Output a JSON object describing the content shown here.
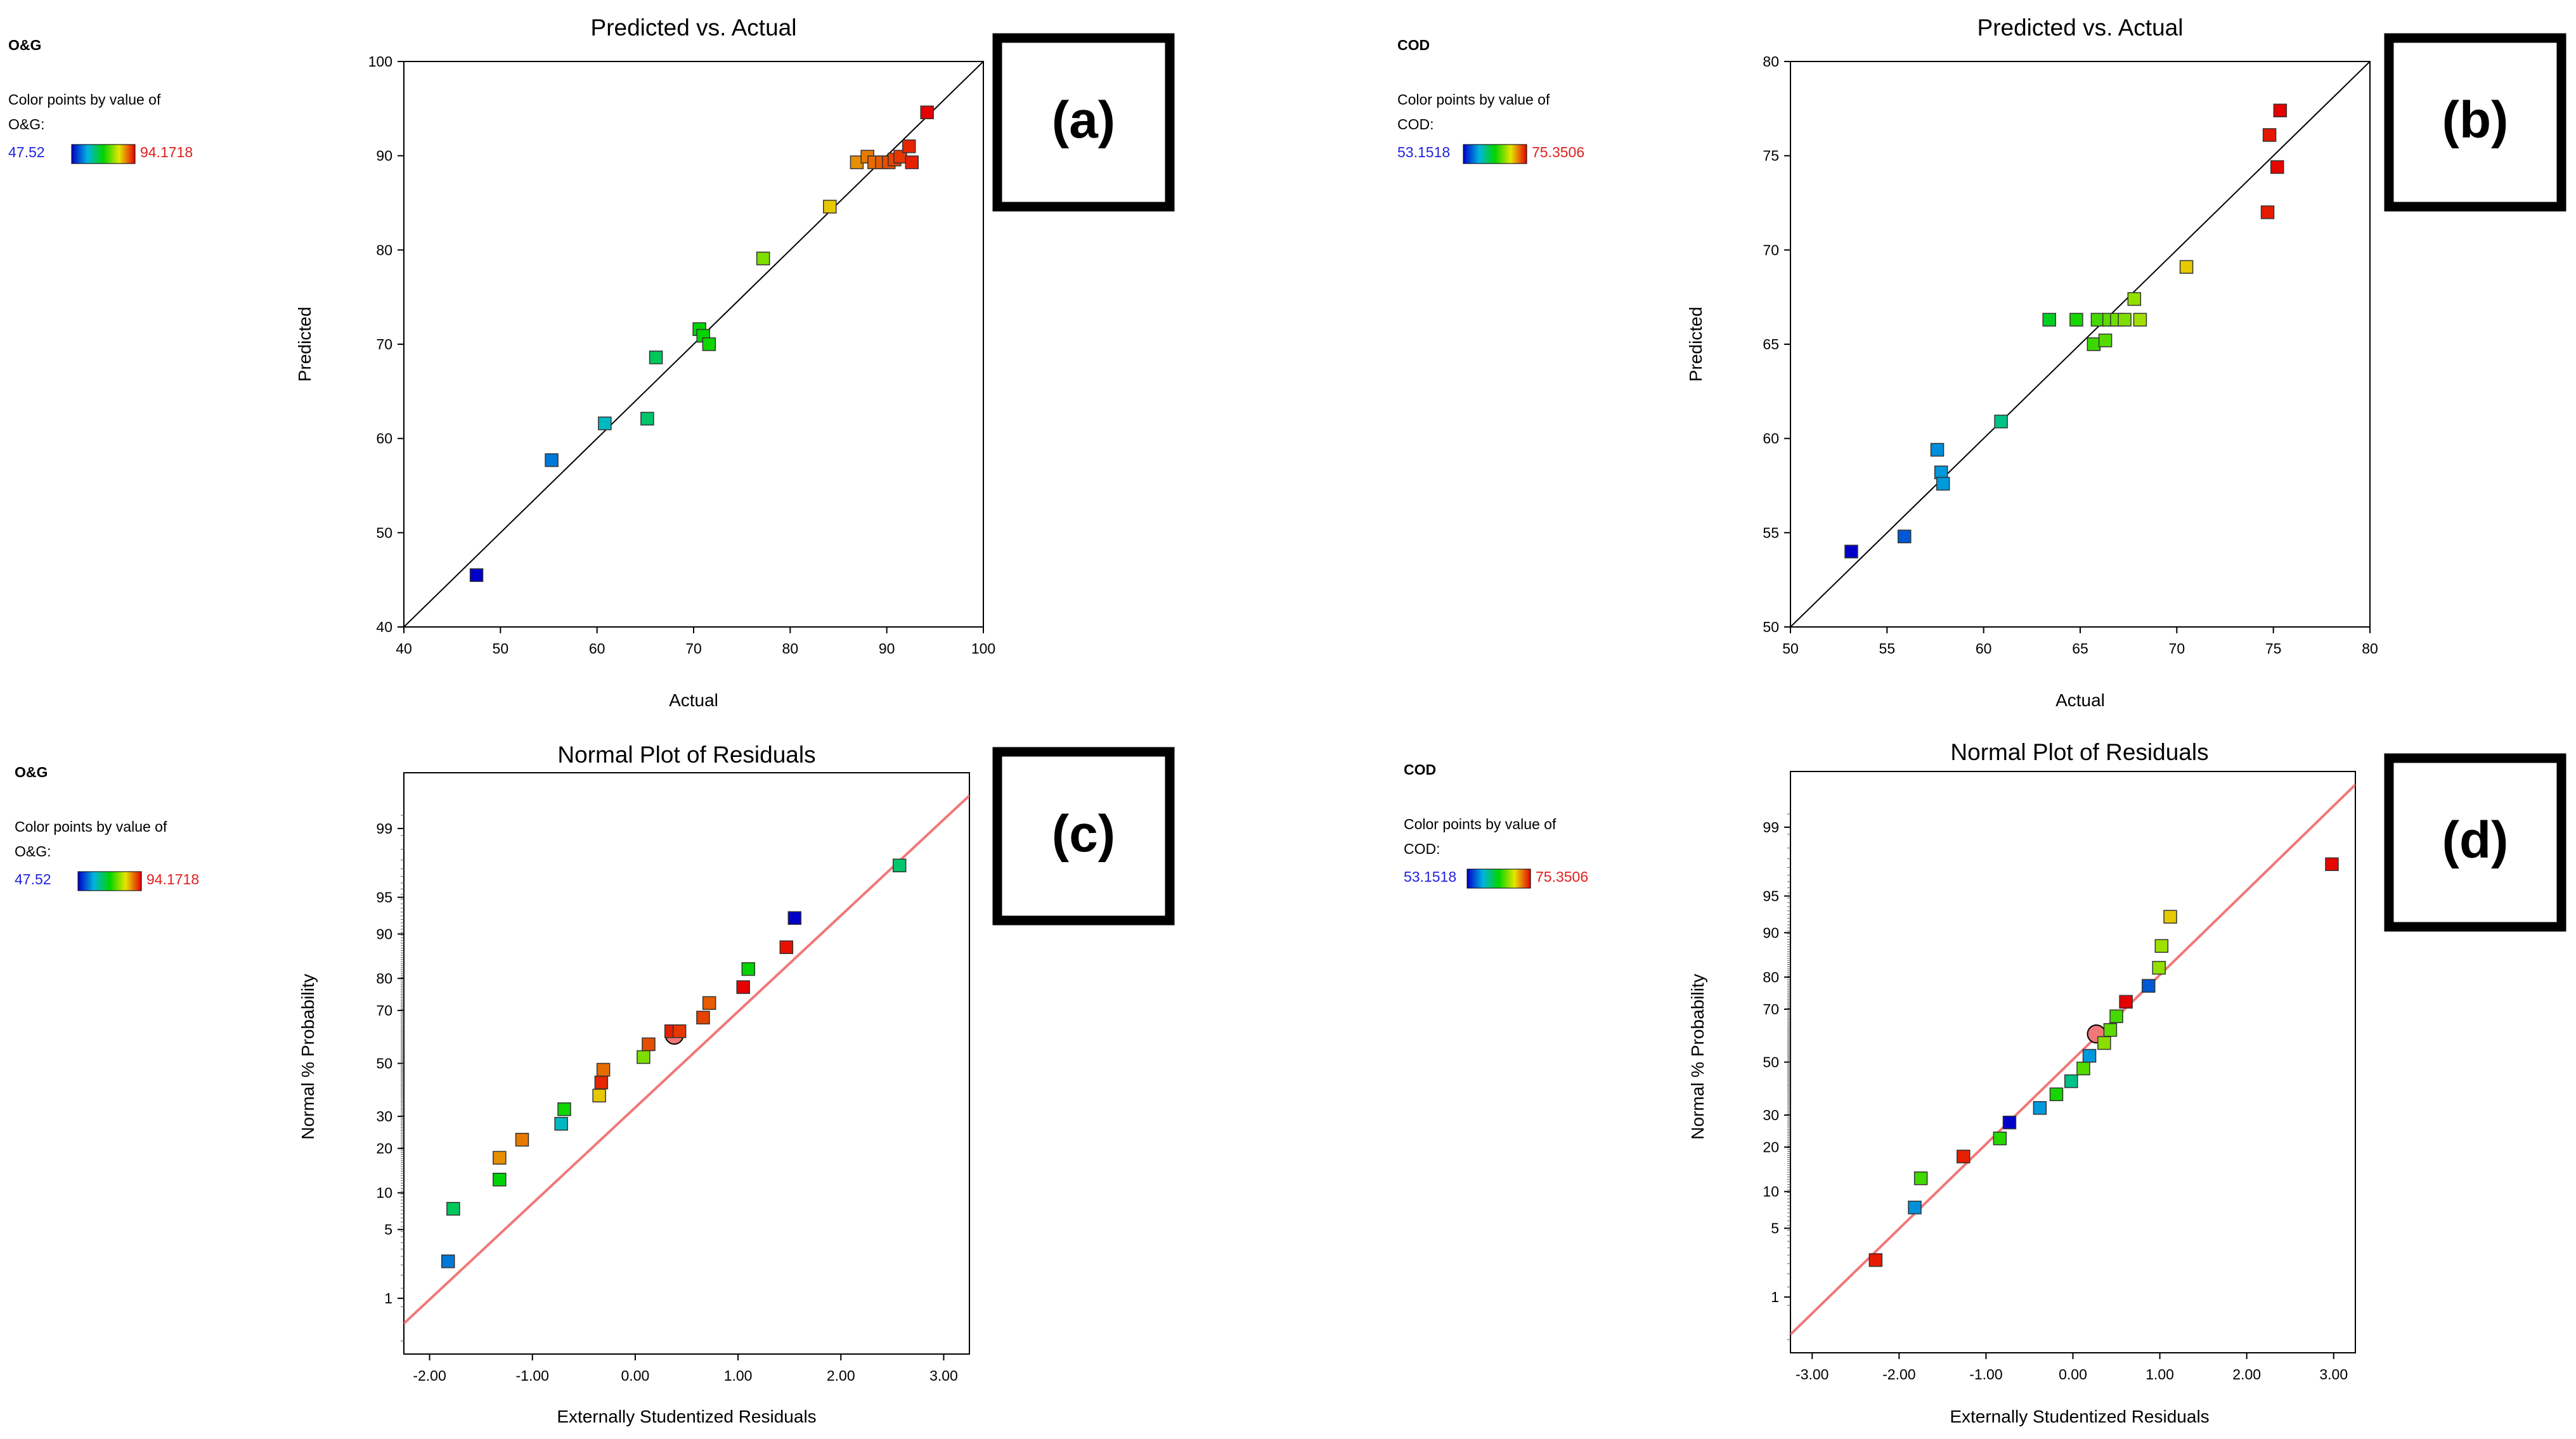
{
  "chart_data": [
    {
      "id": "a",
      "type": "scatter",
      "title": "Predicted vs. Actual",
      "xlabel": "Actual",
      "ylabel": "Predicted",
      "xlim": [
        40,
        100
      ],
      "ylim": [
        40,
        100
      ],
      "xticks": [
        40,
        50,
        60,
        70,
        80,
        90,
        100
      ],
      "yticks": [
        40,
        50,
        60,
        70,
        80,
        90,
        100
      ],
      "fit_line": {
        "from": [
          40,
          40
        ],
        "to": [
          100,
          100
        ],
        "color": "#000000"
      },
      "legend": {
        "response": "O&G",
        "caption": "Color points by value of",
        "label": "O&G:",
        "min": "47.52",
        "max": "94.1718"
      },
      "panel_label": "(a)",
      "color_range": [
        47.52,
        94.1718
      ],
      "points": [
        {
          "x": 47.52,
          "y": 45.5,
          "v": 47.52
        },
        {
          "x": 55.3,
          "y": 57.7,
          "v": 55.3
        },
        {
          "x": 60.8,
          "y": 61.6,
          "v": 60.8
        },
        {
          "x": 65.2,
          "y": 62.1,
          "v": 65.2
        },
        {
          "x": 66.1,
          "y": 68.6,
          "v": 66.1
        },
        {
          "x": 70.6,
          "y": 71.6,
          "v": 70.6
        },
        {
          "x": 71.0,
          "y": 70.9,
          "v": 71.0
        },
        {
          "x": 71.6,
          "y": 70.0,
          "v": 71.6
        },
        {
          "x": 77.2,
          "y": 79.1,
          "v": 77.2
        },
        {
          "x": 84.1,
          "y": 84.6,
          "v": 84.1
        },
        {
          "x": 86.9,
          "y": 89.3,
          "v": 86.9
        },
        {
          "x": 88.0,
          "y": 89.9,
          "v": 88.0
        },
        {
          "x": 88.7,
          "y": 89.3,
          "v": 88.7
        },
        {
          "x": 89.5,
          "y": 89.3,
          "v": 89.5
        },
        {
          "x": 90.2,
          "y": 89.3,
          "v": 90.2
        },
        {
          "x": 90.8,
          "y": 89.6,
          "v": 90.8
        },
        {
          "x": 91.4,
          "y": 89.9,
          "v": 91.4
        },
        {
          "x": 92.3,
          "y": 91.0,
          "v": 92.3
        },
        {
          "x": 92.6,
          "y": 89.3,
          "v": 92.6
        },
        {
          "x": 94.1718,
          "y": 94.6,
          "v": 94.1718
        }
      ]
    },
    {
      "id": "b",
      "type": "scatter",
      "title": "Predicted vs. Actual",
      "xlabel": "Actual",
      "ylabel": "Predicted",
      "xlim": [
        50,
        80
      ],
      "ylim": [
        50,
        80
      ],
      "xticks": [
        50,
        55,
        60,
        65,
        70,
        75,
        80
      ],
      "yticks": [
        50,
        55,
        60,
        65,
        70,
        75,
        80
      ],
      "fit_line": {
        "from": [
          50,
          50
        ],
        "to": [
          80,
          80
        ],
        "color": "#000000"
      },
      "legend": {
        "response": "COD",
        "caption": "Color points by value of",
        "label": "COD:",
        "min": "53.1518",
        "max": "75.3506"
      },
      "panel_label": "(b)",
      "color_range": [
        53.1518,
        75.3506
      ],
      "points": [
        {
          "x": 53.15,
          "y": 54.0,
          "v": 53.15
        },
        {
          "x": 55.9,
          "y": 54.8,
          "v": 55.9
        },
        {
          "x": 57.6,
          "y": 59.4,
          "v": 57.6
        },
        {
          "x": 57.8,
          "y": 58.2,
          "v": 57.8
        },
        {
          "x": 57.9,
          "y": 57.6,
          "v": 57.9
        },
        {
          "x": 60.9,
          "y": 60.9,
          "v": 60.9
        },
        {
          "x": 63.4,
          "y": 66.3,
          "v": 63.4
        },
        {
          "x": 64.8,
          "y": 66.3,
          "v": 64.8
        },
        {
          "x": 65.7,
          "y": 65.0,
          "v": 65.7
        },
        {
          "x": 65.9,
          "y": 66.3,
          "v": 65.9
        },
        {
          "x": 66.3,
          "y": 65.2,
          "v": 66.3
        },
        {
          "x": 66.5,
          "y": 66.3,
          "v": 66.5
        },
        {
          "x": 66.9,
          "y": 66.3,
          "v": 66.9
        },
        {
          "x": 67.3,
          "y": 66.3,
          "v": 67.3
        },
        {
          "x": 67.8,
          "y": 67.4,
          "v": 67.8
        },
        {
          "x": 68.1,
          "y": 66.3,
          "v": 68.1
        },
        {
          "x": 70.5,
          "y": 69.1,
          "v": 70.5
        },
        {
          "x": 74.7,
          "y": 72.0,
          "v": 74.7
        },
        {
          "x": 74.8,
          "y": 76.1,
          "v": 74.8
        },
        {
          "x": 75.2,
          "y": 74.4,
          "v": 75.2
        },
        {
          "x": 75.35,
          "y": 77.4,
          "v": 75.35
        }
      ]
    },
    {
      "id": "c",
      "type": "scatter",
      "title": "Normal Plot of Residuals",
      "xlabel": "Externally Studentized Residuals",
      "ylabel": "Normal % Probability",
      "xlim": [
        -2.25,
        3.25
      ],
      "yscale": "probit",
      "ylim_pct": [
        0.2,
        99.8
      ],
      "xticks": [
        -2.0,
        -1.0,
        0.0,
        1.0,
        2.0,
        3.0
      ],
      "xticklabels": [
        "-2.00",
        "-1.00",
        "0.00",
        "1.00",
        "2.00",
        "3.00"
      ],
      "yticks": [
        1,
        5,
        10,
        20,
        30,
        50,
        70,
        80,
        90,
        95,
        99
      ],
      "fit_line": {
        "from": [
          -2.25,
          0.5
        ],
        "to": [
          3.25,
          99.6
        ],
        "color": "#f07878"
      },
      "legend": {
        "response": "O&G",
        "caption": "Color points by value of",
        "label": "O&G:",
        "min": "47.52",
        "max": "94.1718"
      },
      "panel_label": "(c)",
      "color_range": [
        47.52,
        94.1718
      ],
      "center_marker": {
        "x": 0.38,
        "y": 61
      },
      "points": [
        {
          "x": -1.82,
          "y": 2.5,
          "v": 55.3
        },
        {
          "x": -1.77,
          "y": 7.5,
          "v": 66.1
        },
        {
          "x": -1.32,
          "y": 12.5,
          "v": 70.6
        },
        {
          "x": -1.32,
          "y": 17.5,
          "v": 86.9
        },
        {
          "x": -1.1,
          "y": 22.5,
          "v": 88.0
        },
        {
          "x": -0.72,
          "y": 27.5,
          "v": 60.8
        },
        {
          "x": -0.69,
          "y": 32.5,
          "v": 71.6
        },
        {
          "x": -0.35,
          "y": 37.5,
          "v": 84.1
        },
        {
          "x": -0.33,
          "y": 42.5,
          "v": 92.3
        },
        {
          "x": -0.31,
          "y": 47.5,
          "v": 88.7
        },
        {
          "x": 0.08,
          "y": 52.5,
          "v": 77.2
        },
        {
          "x": 0.13,
          "y": 57.5,
          "v": 90.2
        },
        {
          "x": 0.35,
          "y": 62.5,
          "v": 92.6
        },
        {
          "x": 0.43,
          "y": 62.5,
          "v": 91.4
        },
        {
          "x": 0.66,
          "y": 67.5,
          "v": 90.8
        },
        {
          "x": 0.72,
          "y": 72.5,
          "v": 89.5
        },
        {
          "x": 1.05,
          "y": 77.5,
          "v": 94.17
        },
        {
          "x": 1.1,
          "y": 82.5,
          "v": 71.0
        },
        {
          "x": 1.47,
          "y": 87.5,
          "v": 93.3
        },
        {
          "x": 1.55,
          "y": 92.5,
          "v": 47.52
        },
        {
          "x": 2.57,
          "y": 97.5,
          "v": 65.2
        }
      ]
    },
    {
      "id": "d",
      "type": "scatter",
      "title": "Normal Plot of Residuals",
      "xlabel": "Externally Studentized Residuals",
      "ylabel": "Normal % Probability",
      "xlim": [
        -3.25,
        3.25
      ],
      "yscale": "probit",
      "ylim_pct": [
        0.2,
        99.8
      ],
      "xticks": [
        -3.0,
        -2.0,
        -1.0,
        0.0,
        1.0,
        2.0,
        3.0
      ],
      "xticklabels": [
        "-3.00",
        "-2.00",
        "-1.00",
        "0.00",
        "1.00",
        "2.00",
        "3.00"
      ],
      "yticks": [
        1,
        5,
        10,
        20,
        30,
        50,
        70,
        80,
        90,
        95,
        99
      ],
      "fit_line": {
        "from": [
          -3.25,
          0.35
        ],
        "to": [
          3.25,
          99.7
        ],
        "color": "#f07878"
      },
      "legend": {
        "response": "COD",
        "caption": "Color points by value of",
        "label": "COD:",
        "min": "53.1518",
        "max": "75.3506"
      },
      "panel_label": "(d)",
      "color_range": [
        53.1518,
        75.3506
      ],
      "center_marker": {
        "x": 0.27,
        "y": 61
      },
      "points": [
        {
          "x": -2.27,
          "y": 2.5,
          "v": 74.7
        },
        {
          "x": -1.82,
          "y": 7.5,
          "v": 57.6
        },
        {
          "x": -1.75,
          "y": 12.5,
          "v": 65.8
        },
        {
          "x": -1.26,
          "y": 17.5,
          "v": 74.6
        },
        {
          "x": -0.84,
          "y": 22.5,
          "v": 65.2
        },
        {
          "x": -0.73,
          "y": 27.5,
          "v": 53.15
        },
        {
          "x": -0.38,
          "y": 32.5,
          "v": 57.9
        },
        {
          "x": -0.19,
          "y": 37.5,
          "v": 64.8
        },
        {
          "x": -0.02,
          "y": 42.5,
          "v": 60.9
        },
        {
          "x": 0.12,
          "y": 47.5,
          "v": 66.3
        },
        {
          "x": 0.19,
          "y": 52.5,
          "v": 57.8
        },
        {
          "x": 0.36,
          "y": 57.5,
          "v": 67.6
        },
        {
          "x": 0.43,
          "y": 62.5,
          "v": 66.5
        },
        {
          "x": 0.5,
          "y": 67.5,
          "v": 65.9
        },
        {
          "x": 0.61,
          "y": 72.5,
          "v": 75.35
        },
        {
          "x": 0.87,
          "y": 77.5,
          "v": 55.9
        },
        {
          "x": 0.99,
          "y": 82.5,
          "v": 67.8
        },
        {
          "x": 1.02,
          "y": 87.5,
          "v": 68.1
        },
        {
          "x": 1.12,
          "y": 92.5,
          "v": 70.5
        },
        {
          "x": 2.98,
          "y": 97.5,
          "v": 75.2
        }
      ]
    }
  ]
}
